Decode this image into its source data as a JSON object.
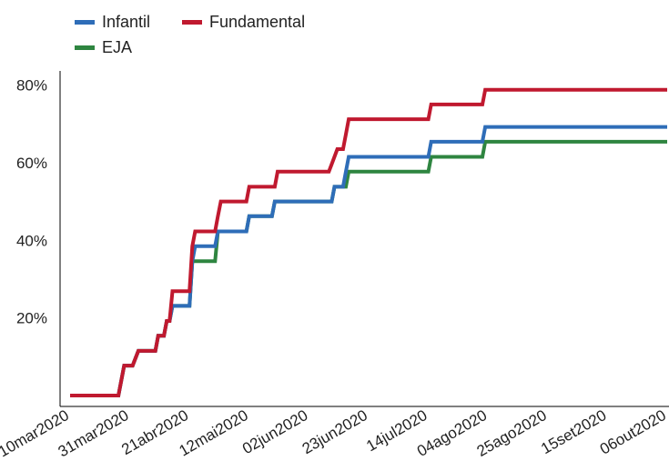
{
  "chart_data": {
    "type": "line",
    "title": "",
    "xlabel": "",
    "ylabel": "",
    "legend_position": "top-left",
    "grid": false,
    "y_ticks": [
      {
        "value": 0.2,
        "label": "20%"
      },
      {
        "value": 0.4,
        "label": "40%"
      },
      {
        "value": 0.6,
        "label": "60%"
      },
      {
        "value": 0.8,
        "label": "80%"
      }
    ],
    "x_tick_labels": [
      "10mar2020",
      "31mar2020",
      "21abr2020",
      "12mai2020",
      "02jun2020",
      "23jun2020",
      "14jul2020",
      "04ago2020",
      "25ago2020",
      "15set2020",
      "06out2020"
    ],
    "x_range": [
      "2020-03-10",
      "2020-10-06"
    ],
    "ylim": [
      0,
      0.82
    ],
    "series": [
      {
        "name": "Infantil",
        "color": "#2e6db8",
        "points": [
          [
            "2020-03-10",
            0
          ],
          [
            "2020-03-27",
            0
          ],
          [
            "2020-03-29",
            0.077
          ],
          [
            "2020-04-01",
            0.077
          ],
          [
            "2020-04-03",
            0.115
          ],
          [
            "2020-04-09",
            0.115
          ],
          [
            "2020-04-10",
            0.154
          ],
          [
            "2020-04-12",
            0.154
          ],
          [
            "2020-04-13",
            0.192
          ],
          [
            "2020-04-14",
            0.192
          ],
          [
            "2020-04-15",
            0.231
          ],
          [
            "2020-04-21",
            0.231
          ],
          [
            "2020-04-22",
            0.346
          ],
          [
            "2020-04-23",
            0.385
          ],
          [
            "2020-04-30",
            0.385
          ],
          [
            "2020-05-01",
            0.423
          ],
          [
            "2020-05-11",
            0.423
          ],
          [
            "2020-05-12",
            0.462
          ],
          [
            "2020-05-20",
            0.462
          ],
          [
            "2020-05-21",
            0.5
          ],
          [
            "2020-06-10",
            0.5
          ],
          [
            "2020-06-11",
            0.538
          ],
          [
            "2020-06-14",
            0.538
          ],
          [
            "2020-06-15",
            0.577
          ],
          [
            "2020-06-16",
            0.615
          ],
          [
            "2020-07-14",
            0.615
          ],
          [
            "2020-07-15",
            0.654
          ],
          [
            "2020-08-02",
            0.654
          ],
          [
            "2020-08-03",
            0.692
          ],
          [
            "2020-10-06",
            0.692
          ]
        ]
      },
      {
        "name": "Fundamental",
        "color": "#c0192f",
        "points": [
          [
            "2020-03-10",
            0
          ],
          [
            "2020-03-27",
            0
          ],
          [
            "2020-03-29",
            0.077
          ],
          [
            "2020-04-01",
            0.077
          ],
          [
            "2020-04-03",
            0.115
          ],
          [
            "2020-04-09",
            0.115
          ],
          [
            "2020-04-10",
            0.154
          ],
          [
            "2020-04-12",
            0.154
          ],
          [
            "2020-04-13",
            0.192
          ],
          [
            "2020-04-14",
            0.192
          ],
          [
            "2020-04-15",
            0.269
          ],
          [
            "2020-04-21",
            0.269
          ],
          [
            "2020-04-22",
            0.385
          ],
          [
            "2020-04-23",
            0.423
          ],
          [
            "2020-04-30",
            0.423
          ],
          [
            "2020-05-01",
            0.462
          ],
          [
            "2020-05-02",
            0.5
          ],
          [
            "2020-05-11",
            0.5
          ],
          [
            "2020-05-12",
            0.538
          ],
          [
            "2020-05-21",
            0.538
          ],
          [
            "2020-05-22",
            0.577
          ],
          [
            "2020-06-09",
            0.577
          ],
          [
            "2020-06-10",
            0.596
          ],
          [
            "2020-06-12",
            0.635
          ],
          [
            "2020-06-14",
            0.635
          ],
          [
            "2020-06-15",
            0.673
          ],
          [
            "2020-06-16",
            0.712
          ],
          [
            "2020-07-14",
            0.712
          ],
          [
            "2020-07-15",
            0.75
          ],
          [
            "2020-08-02",
            0.75
          ],
          [
            "2020-08-03",
            0.788
          ],
          [
            "2020-10-06",
            0.788
          ]
        ]
      },
      {
        "name": "EJA",
        "color": "#2e8540",
        "points": [
          [
            "2020-03-10",
            0
          ],
          [
            "2020-03-27",
            0
          ],
          [
            "2020-03-29",
            0.077
          ],
          [
            "2020-04-01",
            0.077
          ],
          [
            "2020-04-03",
            0.115
          ],
          [
            "2020-04-09",
            0.115
          ],
          [
            "2020-04-10",
            0.154
          ],
          [
            "2020-04-12",
            0.154
          ],
          [
            "2020-04-13",
            0.192
          ],
          [
            "2020-04-14",
            0.192
          ],
          [
            "2020-04-15",
            0.231
          ],
          [
            "2020-04-21",
            0.231
          ],
          [
            "2020-04-22",
            0.346
          ],
          [
            "2020-04-30",
            0.346
          ],
          [
            "2020-05-01",
            0.423
          ],
          [
            "2020-05-11",
            0.423
          ],
          [
            "2020-05-12",
            0.462
          ],
          [
            "2020-05-20",
            0.462
          ],
          [
            "2020-05-21",
            0.5
          ],
          [
            "2020-06-10",
            0.5
          ],
          [
            "2020-06-11",
            0.538
          ],
          [
            "2020-06-15",
            0.538
          ],
          [
            "2020-06-16",
            0.577
          ],
          [
            "2020-07-14",
            0.577
          ],
          [
            "2020-07-15",
            0.615
          ],
          [
            "2020-08-02",
            0.615
          ],
          [
            "2020-08-03",
            0.654
          ],
          [
            "2020-10-06",
            0.654
          ]
        ]
      }
    ]
  }
}
